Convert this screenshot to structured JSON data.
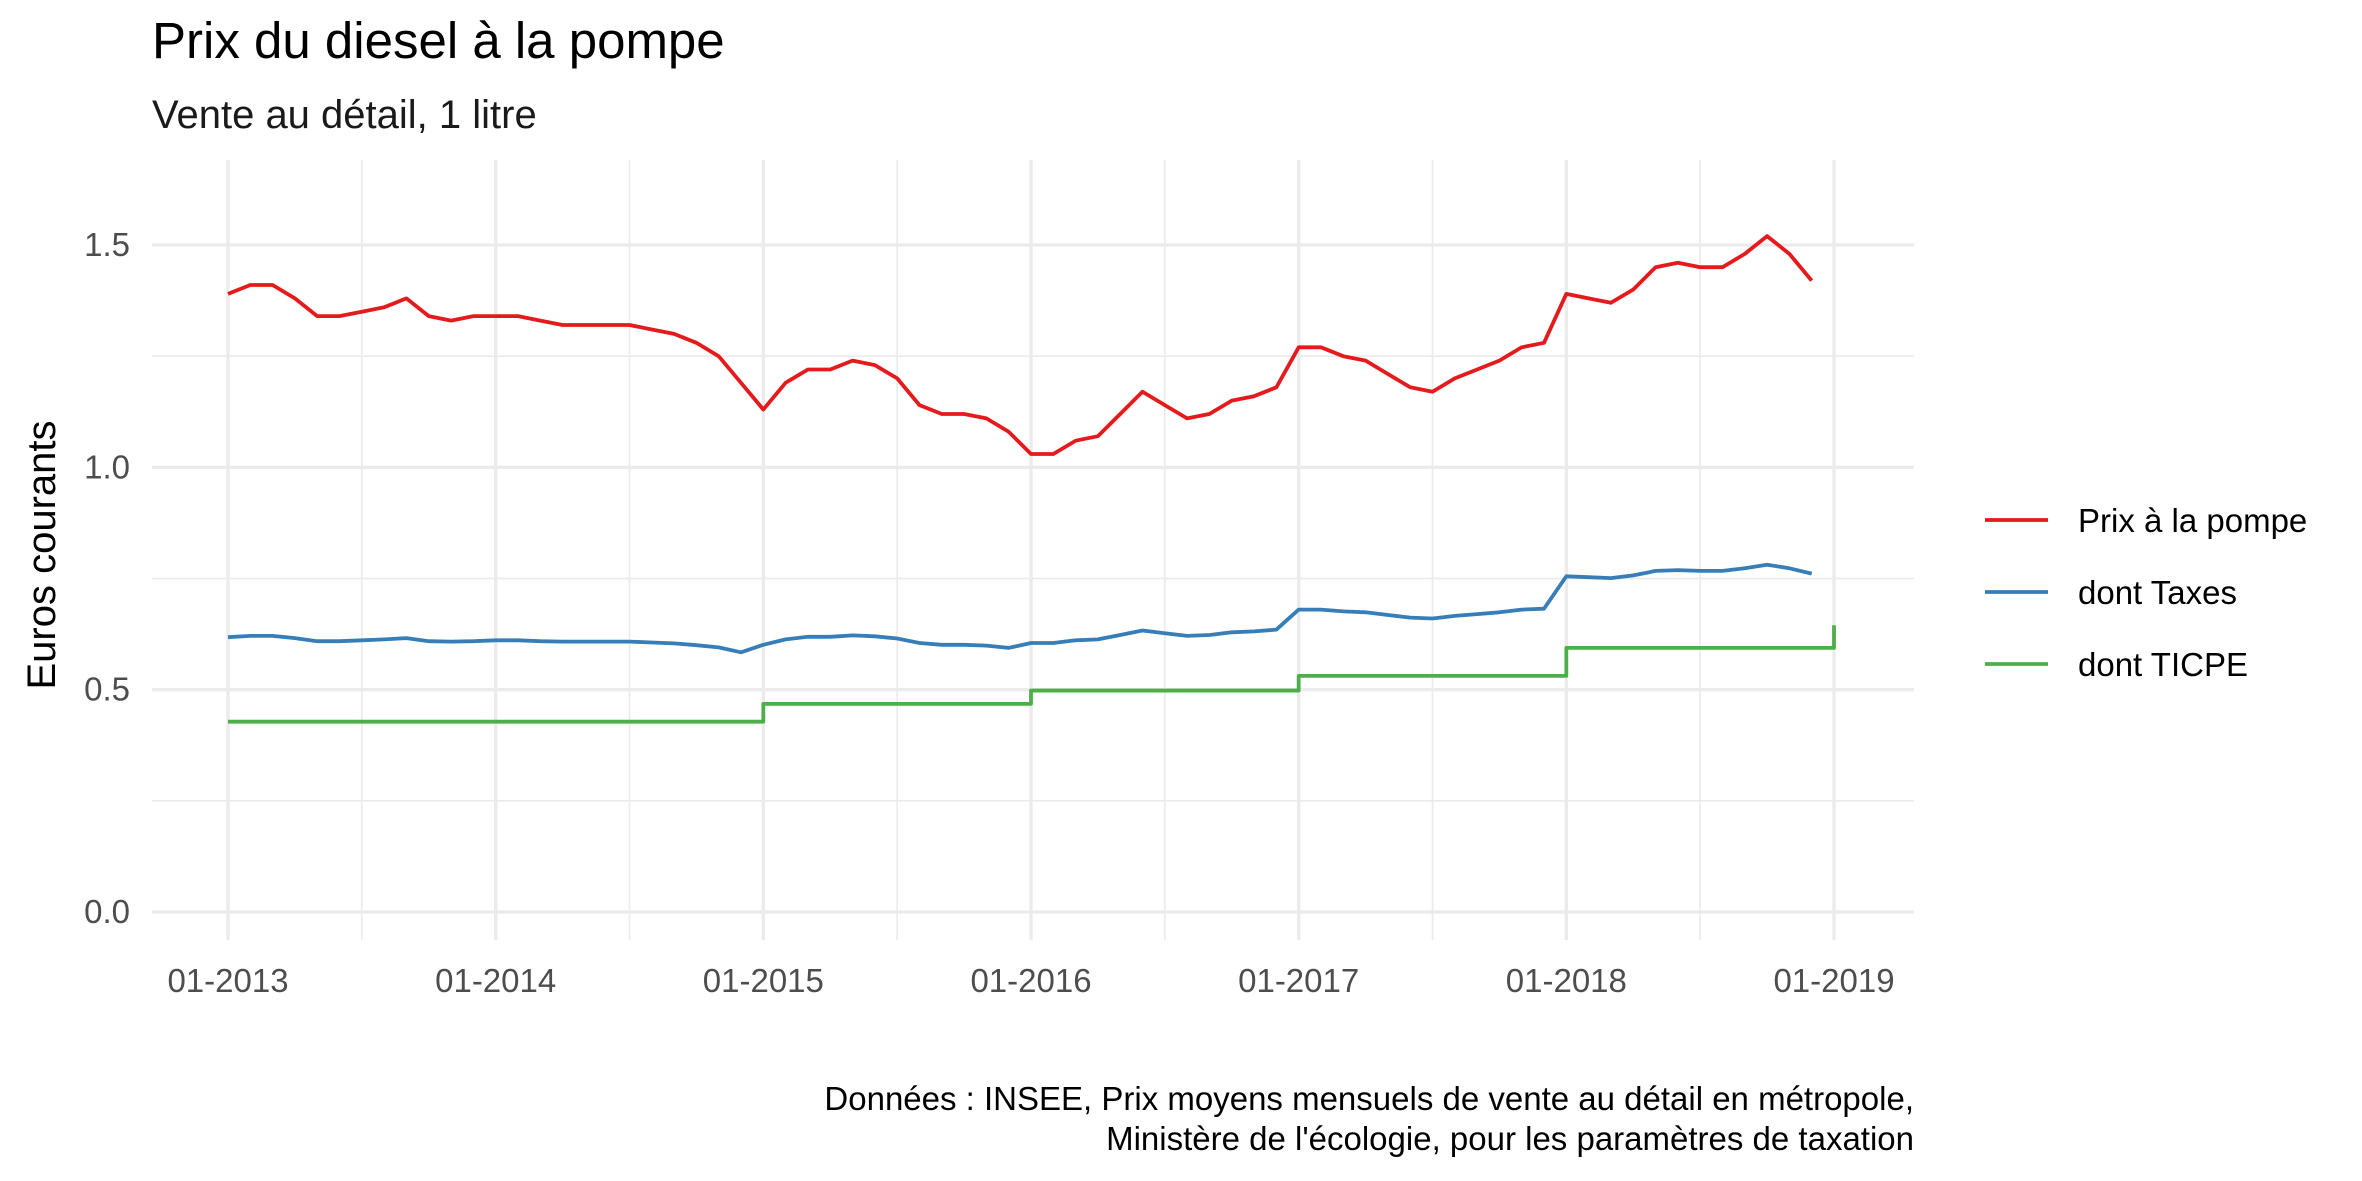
{
  "chart_data": {
    "type": "line",
    "title": "Prix du diesel à la pompe",
    "subtitle": "Vente au détail, 1 litre",
    "xlabel": "",
    "ylabel": "Euros courants",
    "xlim": [
      "2012-11",
      "2019-03"
    ],
    "ylim": [
      -0.08,
      1.68
    ],
    "x_ticks": [
      {
        "value": "2013-01",
        "label": "01-2013"
      },
      {
        "value": "2014-01",
        "label": "01-2014"
      },
      {
        "value": "2015-01",
        "label": "01-2015"
      },
      {
        "value": "2016-01",
        "label": "01-2016"
      },
      {
        "value": "2017-01",
        "label": "01-2017"
      },
      {
        "value": "2018-01",
        "label": "01-2018"
      },
      {
        "value": "2019-01",
        "label": "01-2019"
      }
    ],
    "x_minor_ticks": [
      "2013-07",
      "2014-07",
      "2015-07",
      "2016-07",
      "2017-07",
      "2018-07"
    ],
    "y_ticks": [
      {
        "value": 0.0,
        "label": "0.0"
      },
      {
        "value": 0.5,
        "label": "0.5"
      },
      {
        "value": 1.0,
        "label": "1.0"
      },
      {
        "value": 1.5,
        "label": "1.5"
      }
    ],
    "y_minor_ticks": [
      0.25,
      0.75,
      1.25
    ],
    "grid": true,
    "legend_position": "right",
    "caption": [
      "Données : INSEE, Prix moyens mensuels de vente au détail en métropole,",
      "Ministère de l'écologie, pour les paramètres de taxation"
    ],
    "series": [
      {
        "name": "Prix à la pompe",
        "color": "#E41A1C",
        "x": [
          "2013-01",
          "2013-02",
          "2013-03",
          "2013-04",
          "2013-05",
          "2013-06",
          "2013-07",
          "2013-08",
          "2013-09",
          "2013-10",
          "2013-11",
          "2013-12",
          "2014-01",
          "2014-02",
          "2014-03",
          "2014-04",
          "2014-05",
          "2014-06",
          "2014-07",
          "2014-08",
          "2014-09",
          "2014-10",
          "2014-11",
          "2014-12",
          "2015-01",
          "2015-02",
          "2015-03",
          "2015-04",
          "2015-05",
          "2015-06",
          "2015-07",
          "2015-08",
          "2015-09",
          "2015-10",
          "2015-11",
          "2015-12",
          "2016-01",
          "2016-02",
          "2016-03",
          "2016-04",
          "2016-05",
          "2016-06",
          "2016-07",
          "2016-08",
          "2016-09",
          "2016-10",
          "2016-11",
          "2016-12",
          "2017-01",
          "2017-02",
          "2017-03",
          "2017-04",
          "2017-05",
          "2017-06",
          "2017-07",
          "2017-08",
          "2017-09",
          "2017-10",
          "2017-11",
          "2017-12",
          "2018-01",
          "2018-02",
          "2018-03",
          "2018-04",
          "2018-05",
          "2018-06",
          "2018-07",
          "2018-08",
          "2018-09",
          "2018-10",
          "2018-11",
          "2018-12"
        ],
        "y": [
          1.39,
          1.41,
          1.41,
          1.38,
          1.34,
          1.34,
          1.35,
          1.36,
          1.38,
          1.34,
          1.33,
          1.34,
          1.34,
          1.34,
          1.33,
          1.32,
          1.32,
          1.32,
          1.32,
          1.31,
          1.3,
          1.28,
          1.25,
          1.19,
          1.13,
          1.19,
          1.22,
          1.22,
          1.24,
          1.23,
          1.2,
          1.14,
          1.12,
          1.12,
          1.11,
          1.08,
          1.03,
          1.03,
          1.06,
          1.07,
          1.12,
          1.17,
          1.14,
          1.11,
          1.12,
          1.15,
          1.16,
          1.18,
          1.27,
          1.27,
          1.25,
          1.24,
          1.21,
          1.18,
          1.17,
          1.2,
          1.22,
          1.24,
          1.27,
          1.28,
          1.39,
          1.38,
          1.37,
          1.4,
          1.45,
          1.46,
          1.45,
          1.45,
          1.48,
          1.52,
          1.48,
          1.42
        ]
      },
      {
        "name": "dont Taxes",
        "color": "#377EB8",
        "x": [
          "2013-01",
          "2013-02",
          "2013-03",
          "2013-04",
          "2013-05",
          "2013-06",
          "2013-07",
          "2013-08",
          "2013-09",
          "2013-10",
          "2013-11",
          "2013-12",
          "2014-01",
          "2014-02",
          "2014-03",
          "2014-04",
          "2014-05",
          "2014-06",
          "2014-07",
          "2014-08",
          "2014-09",
          "2014-10",
          "2014-11",
          "2014-12",
          "2015-01",
          "2015-02",
          "2015-03",
          "2015-04",
          "2015-05",
          "2015-06",
          "2015-07",
          "2015-08",
          "2015-09",
          "2015-10",
          "2015-11",
          "2015-12",
          "2016-01",
          "2016-02",
          "2016-03",
          "2016-04",
          "2016-05",
          "2016-06",
          "2016-07",
          "2016-08",
          "2016-09",
          "2016-10",
          "2016-11",
          "2016-12",
          "2017-01",
          "2017-02",
          "2017-03",
          "2017-04",
          "2017-05",
          "2017-06",
          "2017-07",
          "2017-08",
          "2017-09",
          "2017-10",
          "2017-11",
          "2017-12",
          "2018-01",
          "2018-02",
          "2018-03",
          "2018-04",
          "2018-05",
          "2018-06",
          "2018-07",
          "2018-08",
          "2018-09",
          "2018-10",
          "2018-11",
          "2018-12"
        ],
        "y": [
          0.618,
          0.621,
          0.621,
          0.616,
          0.609,
          0.609,
          0.611,
          0.613,
          0.616,
          0.609,
          0.608,
          0.609,
          0.611,
          0.611,
          0.609,
          0.608,
          0.608,
          0.608,
          0.608,
          0.606,
          0.604,
          0.6,
          0.595,
          0.584,
          0.601,
          0.613,
          0.619,
          0.619,
          0.622,
          0.62,
          0.615,
          0.605,
          0.601,
          0.601,
          0.599,
          0.594,
          0.605,
          0.605,
          0.611,
          0.613,
          0.623,
          0.633,
          0.627,
          0.621,
          0.623,
          0.629,
          0.631,
          0.635,
          0.68,
          0.68,
          0.676,
          0.674,
          0.668,
          0.662,
          0.66,
          0.666,
          0.67,
          0.674,
          0.68,
          0.682,
          0.755,
          0.753,
          0.751,
          0.757,
          0.767,
          0.769,
          0.767,
          0.767,
          0.773,
          0.781,
          0.773,
          0.761
        ]
      },
      {
        "name": "dont TICPE",
        "color": "#4DAF4A",
        "step": true,
        "x": [
          "2013-01",
          "2015-01",
          "2016-01",
          "2017-01",
          "2018-01",
          "2019-01"
        ],
        "y": [
          0.428,
          0.468,
          0.498,
          0.531,
          0.594,
          0.645
        ]
      }
    ]
  }
}
